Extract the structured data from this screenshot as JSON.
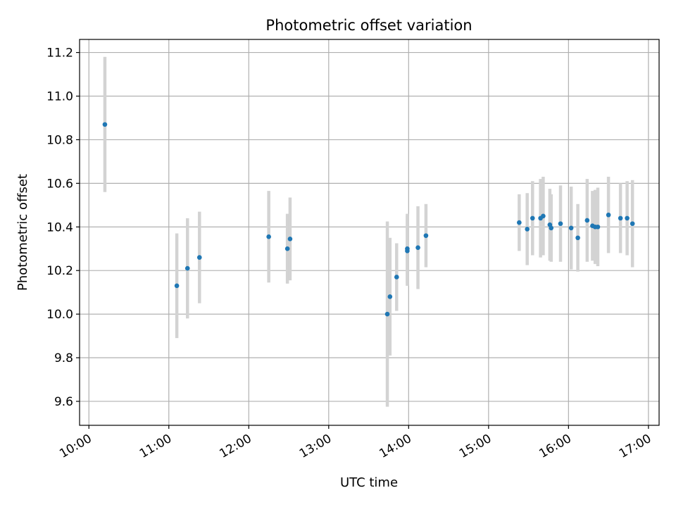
{
  "chart_data": {
    "type": "scatter",
    "title": "Photometric offset variation",
    "xlabel": "UTC time",
    "ylabel": "Photometric offset",
    "x_tick_labels": [
      "10:00",
      "11:00",
      "12:00",
      "13:00",
      "14:00",
      "15:00",
      "16:00",
      "17:00"
    ],
    "y_ticks": [
      9.6,
      9.8,
      10.0,
      10.2,
      10.4,
      10.6,
      10.8,
      11.0,
      11.2
    ],
    "y_tick_labels": [
      "9.6",
      "9.8",
      "10.0",
      "10.2",
      "10.4",
      "10.6",
      "10.8",
      "11.0",
      "11.2"
    ],
    "xlim": [
      "09:53",
      "17:08"
    ],
    "ylim": [
      9.49,
      11.26
    ],
    "grid": true,
    "marker_color": "#1f77b4",
    "errorbar_color": "#d3d3d3",
    "points": [
      {
        "x": "10:12",
        "y": 10.87,
        "err": 0.31
      },
      {
        "x": "11:06",
        "y": 10.13,
        "err": 0.24
      },
      {
        "x": "11:14",
        "y": 10.21,
        "err": 0.23
      },
      {
        "x": "11:23",
        "y": 10.26,
        "err": 0.21
      },
      {
        "x": "12:15",
        "y": 10.355,
        "err": 0.21
      },
      {
        "x": "12:29",
        "y": 10.3,
        "err": 0.16
      },
      {
        "x": "12:31",
        "y": 10.345,
        "err": 0.19
      },
      {
        "x": "13:44",
        "y": 10.0,
        "err": 0.425
      },
      {
        "x": "13:46",
        "y": 10.08,
        "err": 0.27
      },
      {
        "x": "13:51",
        "y": 10.17,
        "err": 0.155
      },
      {
        "x": "13:59",
        "y": 10.3,
        "err": 0.16
      },
      {
        "x": "13:59",
        "y": 10.29,
        "err": 0.16
      },
      {
        "x": "14:07",
        "y": 10.305,
        "err": 0.19
      },
      {
        "x": "14:13",
        "y": 10.36,
        "err": 0.145
      },
      {
        "x": "15:23",
        "y": 10.42,
        "err": 0.13
      },
      {
        "x": "15:29",
        "y": 10.39,
        "err": 0.165
      },
      {
        "x": "15:33",
        "y": 10.44,
        "err": 0.17
      },
      {
        "x": "15:39",
        "y": 10.44,
        "err": 0.18
      },
      {
        "x": "15:41",
        "y": 10.45,
        "err": 0.18
      },
      {
        "x": "15:46",
        "y": 10.41,
        "err": 0.165
      },
      {
        "x": "15:47",
        "y": 10.395,
        "err": 0.155
      },
      {
        "x": "15:54",
        "y": 10.415,
        "err": 0.175
      },
      {
        "x": "16:02",
        "y": 10.395,
        "err": 0.19
      },
      {
        "x": "16:07",
        "y": 10.35,
        "err": 0.155
      },
      {
        "x": "16:14",
        "y": 10.43,
        "err": 0.19
      },
      {
        "x": "16:18",
        "y": 10.405,
        "err": 0.16
      },
      {
        "x": "16:20",
        "y": 10.4,
        "err": 0.17
      },
      {
        "x": "16:22",
        "y": 10.4,
        "err": 0.18
      },
      {
        "x": "16:30",
        "y": 10.455,
        "err": 0.175
      },
      {
        "x": "16:39",
        "y": 10.44,
        "err": 0.16
      },
      {
        "x": "16:44",
        "y": 10.44,
        "err": 0.17
      },
      {
        "x": "16:48",
        "y": 10.415,
        "err": 0.2
      }
    ]
  }
}
